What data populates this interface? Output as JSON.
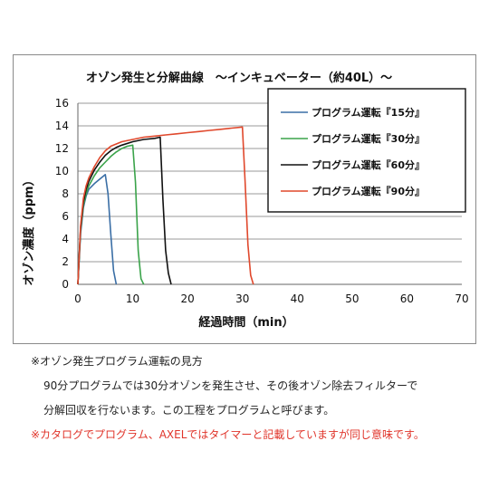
{
  "chart_data": {
    "type": "line",
    "title": "オゾン発生と分解曲線　～インキュベーター（約40L）～",
    "xlabel": "経過時間（min）",
    "ylabel": "オゾン濃度（ppm）",
    "xlim": [
      0,
      70
    ],
    "ylim": [
      0,
      16
    ],
    "xticks": [
      0,
      10,
      20,
      30,
      40,
      50,
      60,
      70
    ],
    "yticks": [
      0,
      2,
      4,
      6,
      8,
      10,
      12,
      14,
      16
    ],
    "grid": "horizontal",
    "legend_position": "top-right",
    "series": [
      {
        "name": "プログラム運転『15分』",
        "color": "#3a6ea5",
        "x": [
          0,
          0.5,
          1,
          1.5,
          2,
          3,
          4,
          5,
          5.5,
          6,
          6.5,
          7
        ],
        "y": [
          0,
          4.5,
          6.8,
          7.8,
          8.4,
          8.9,
          9.3,
          9.7,
          8.0,
          4.5,
          1.2,
          0
        ]
      },
      {
        "name": "プログラム運転『30分』",
        "color": "#3aa34a",
        "x": [
          0,
          0.5,
          1,
          1.5,
          2,
          3,
          4,
          5,
          6,
          7,
          8,
          9,
          10,
          10.5,
          11,
          11.5,
          12
        ],
        "y": [
          0,
          4.8,
          7.0,
          8.0,
          8.7,
          9.6,
          10.3,
          10.8,
          11.3,
          11.7,
          12.0,
          12.2,
          12.3,
          9.0,
          3.0,
          0.5,
          0
        ]
      },
      {
        "name": "プログラム運転『60分』",
        "color": "#111111",
        "x": [
          0,
          0.5,
          1,
          1.5,
          2,
          3,
          4,
          5,
          6,
          7,
          8,
          10,
          12,
          14,
          15,
          15.5,
          16,
          16.5,
          17
        ],
        "y": [
          0,
          5.0,
          7.3,
          8.4,
          9.1,
          10.1,
          10.8,
          11.4,
          11.8,
          12.1,
          12.3,
          12.6,
          12.8,
          12.9,
          13.0,
          7.5,
          3.0,
          1.0,
          0
        ]
      },
      {
        "name": "プログラム運転『90分』",
        "color": "#e0482c",
        "x": [
          0,
          0.5,
          1,
          1.5,
          2,
          3,
          4,
          5,
          6,
          7,
          8,
          10,
          12,
          14,
          16,
          18,
          20,
          22,
          24,
          26,
          28,
          30,
          30.5,
          31,
          31.5,
          32
        ],
        "y": [
          0,
          5.2,
          7.6,
          8.7,
          9.4,
          10.4,
          11.2,
          11.8,
          12.2,
          12.4,
          12.6,
          12.8,
          13.0,
          13.1,
          13.2,
          13.3,
          13.4,
          13.5,
          13.6,
          13.7,
          13.8,
          13.9,
          9.0,
          3.5,
          0.8,
          0
        ]
      }
    ]
  },
  "notes": {
    "heading": "※オゾン発生プログラム運転の見方",
    "line1": "90分プログラムでは30分オゾンを発生させ、その後オゾン除去フィルターで",
    "line2": "分解回収を行ないます。この工程をプログラムと呼びます。",
    "warning": "※カタログでプログラム、AXELではタイマーと記載していますが同じ意味です。"
  }
}
